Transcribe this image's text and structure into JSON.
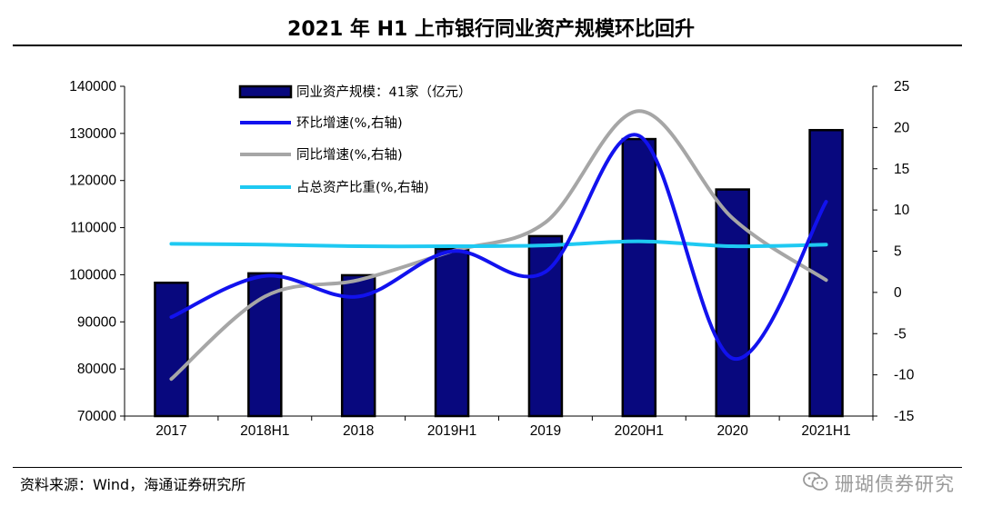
{
  "title": "2021 年 H1 上市银行同业资产规模环比回升",
  "source": "资料来源：Wind，海通证券研究所",
  "watermark": "珊瑚债券研究",
  "watermark_icon": "wechat-icon",
  "colors": {
    "bar_fill": "#08087e",
    "bar_edge": "#000000",
    "qoq_line": "#1212ee",
    "yoy_line": "#a6a6a6",
    "share_line": "#1ec9f2"
  },
  "chart_data": {
    "type": "bar",
    "categories": [
      "2017",
      "2018H1",
      "2018",
      "2019H1",
      "2019",
      "2020H1",
      "2020",
      "2021H1"
    ],
    "y_left": {
      "ticks": [
        70000,
        80000,
        90000,
        100000,
        110000,
        120000,
        130000,
        140000
      ],
      "ylim": [
        70000,
        140000
      ]
    },
    "y_right": {
      "ticks": [
        -15,
        -10,
        -5,
        0,
        5,
        10,
        15,
        20,
        25
      ],
      "ylim": [
        -15,
        25
      ]
    },
    "grid": false,
    "legend_position": "top-left",
    "series": [
      {
        "name": "同业资产规模：41家（亿元）",
        "kind": "bar",
        "axis": "left",
        "values": [
          98300,
          100300,
          99900,
          105500,
          108200,
          128800,
          118100,
          130700
        ]
      },
      {
        "name": "环比增速(%,右轴)",
        "kind": "line",
        "axis": "right",
        "values": [
          -3.0,
          2.0,
          -0.5,
          5.0,
          2.5,
          19.0,
          -8.0,
          11.0
        ]
      },
      {
        "name": "同比增速(%,右轴)",
        "kind": "line",
        "axis": "right",
        "values": [
          -10.5,
          -0.5,
          1.5,
          5.0,
          8.5,
          22.0,
          9.0,
          1.5
        ]
      },
      {
        "name": "占总资产比重(%,右轴)",
        "kind": "line",
        "axis": "right",
        "values": [
          5.9,
          5.8,
          5.6,
          5.6,
          5.7,
          6.2,
          5.6,
          5.8
        ]
      }
    ]
  }
}
